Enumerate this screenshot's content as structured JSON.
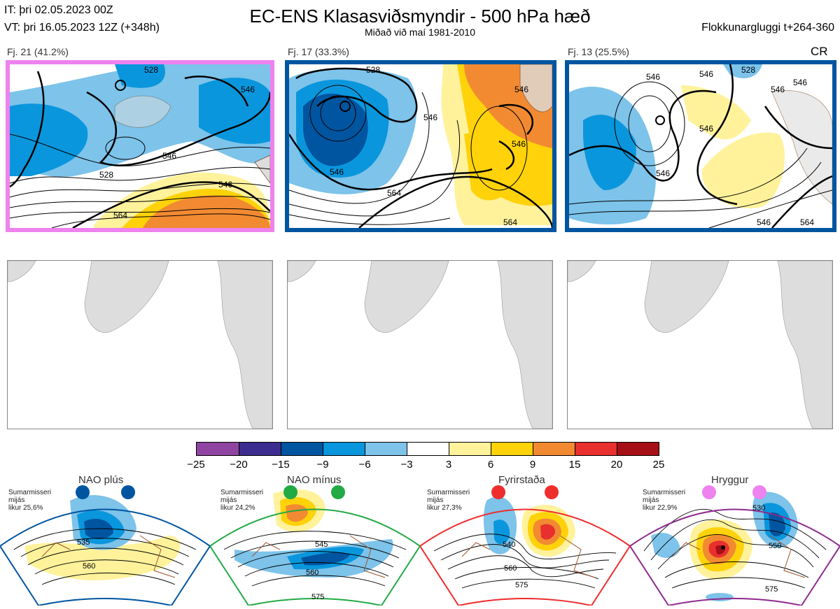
{
  "header": {
    "it": "IT: þri 02.05.2023 00Z",
    "vt": "VT: þri 16.05.2023 12Z  (+348h)",
    "title": "EC-ENS Klasasviðsmyndir - 500 hPa hæð",
    "subtitle": "Miðað við maí 1981-2010",
    "window": "Flokkunargluggi t+264-360",
    "corner_code": "CR"
  },
  "clusters": [
    {
      "label": "Fj. 21 (41.2%)",
      "border_color": "#ee82ee",
      "contour_labels": [
        "528",
        "546",
        "546",
        "528",
        "564",
        "546"
      ]
    },
    {
      "label": "Fj. 17 (33.3%)",
      "border_color": "#0055a0",
      "contour_labels": [
        "546",
        "528",
        "546",
        "564",
        "546",
        "546",
        "564"
      ]
    },
    {
      "label": "Fj. 13 (25.5%)",
      "border_color": "#0055a0",
      "contour_labels": [
        "546",
        "546",
        "546",
        "546",
        "546",
        "528",
        "546",
        "546",
        "564"
      ]
    }
  ],
  "colorbar": {
    "ticks": [
      "−25",
      "−20",
      "−15",
      "−9",
      "−6",
      "−3",
      "3",
      "6",
      "9",
      "15",
      "20",
      "25"
    ],
    "colors": [
      "#8e44a0",
      "#3d2c8f",
      "#0055a0",
      "#0a96dc",
      "#7dc3ea",
      "#ffffff",
      "#fff29b",
      "#ffd20a",
      "#f28a32",
      "#e8302e",
      "#a50f15"
    ]
  },
  "regimes": [
    {
      "title": "NAO plús",
      "note": [
        "Sumarmisseri",
        "mijás",
        "likur 25,6%"
      ],
      "dot_color": "#0055a0",
      "frame_color": "#0055a0",
      "contour_labels": [
        "535",
        "560"
      ]
    },
    {
      "title": "NAO mínus",
      "note": [
        "Sumarmisseri",
        "mijás",
        "likur 24,2%"
      ],
      "dot_color": "#22aa44",
      "frame_color": "#22aa44",
      "contour_labels": [
        "545",
        "560",
        "575"
      ]
    },
    {
      "title": "Fyrirstaða",
      "note": [
        "Sumarmisseri",
        "mijás",
        "likur 27,3%"
      ],
      "dot_color": "#ee2d2d",
      "frame_color": "#ee2d2d",
      "contour_labels": [
        "540",
        "560",
        "575"
      ]
    },
    {
      "title": "Hryggur",
      "note": [
        "Sumarmisseri",
        "mijás",
        "likur 22,9%"
      ],
      "dot_color": "#ee82ee",
      "frame_color": "#8e2a8e",
      "contour_labels": [
        "530",
        "550",
        "575"
      ]
    }
  ]
}
